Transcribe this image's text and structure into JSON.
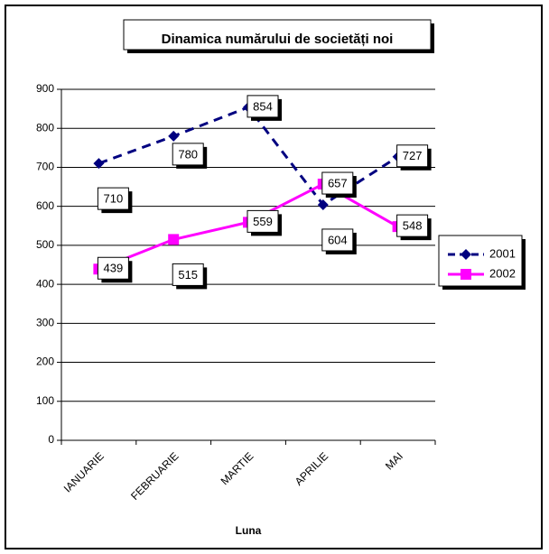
{
  "chart_data": {
    "type": "line",
    "title": "Dinamica numărului de societăți noi",
    "xlabel": "Luna",
    "ylabel": "",
    "categories": [
      "IANUARIE",
      "FEBRUARIE",
      "MARTIE",
      "APRILIE",
      "MAI"
    ],
    "ylim": [
      0,
      900
    ],
    "ytick_step": 100,
    "grid": "horizontal",
    "legend_position": "right",
    "series": [
      {
        "name": "2001",
        "values": [
          710,
          780,
          854,
          604,
          727
        ],
        "color": "#000080",
        "line_style": "dashed",
        "marker": "diamond"
      },
      {
        "name": "2002",
        "values": [
          439,
          515,
          559,
          657,
          548
        ],
        "color": "#ff00ff",
        "line_style": "solid",
        "marker": "square"
      }
    ]
  }
}
